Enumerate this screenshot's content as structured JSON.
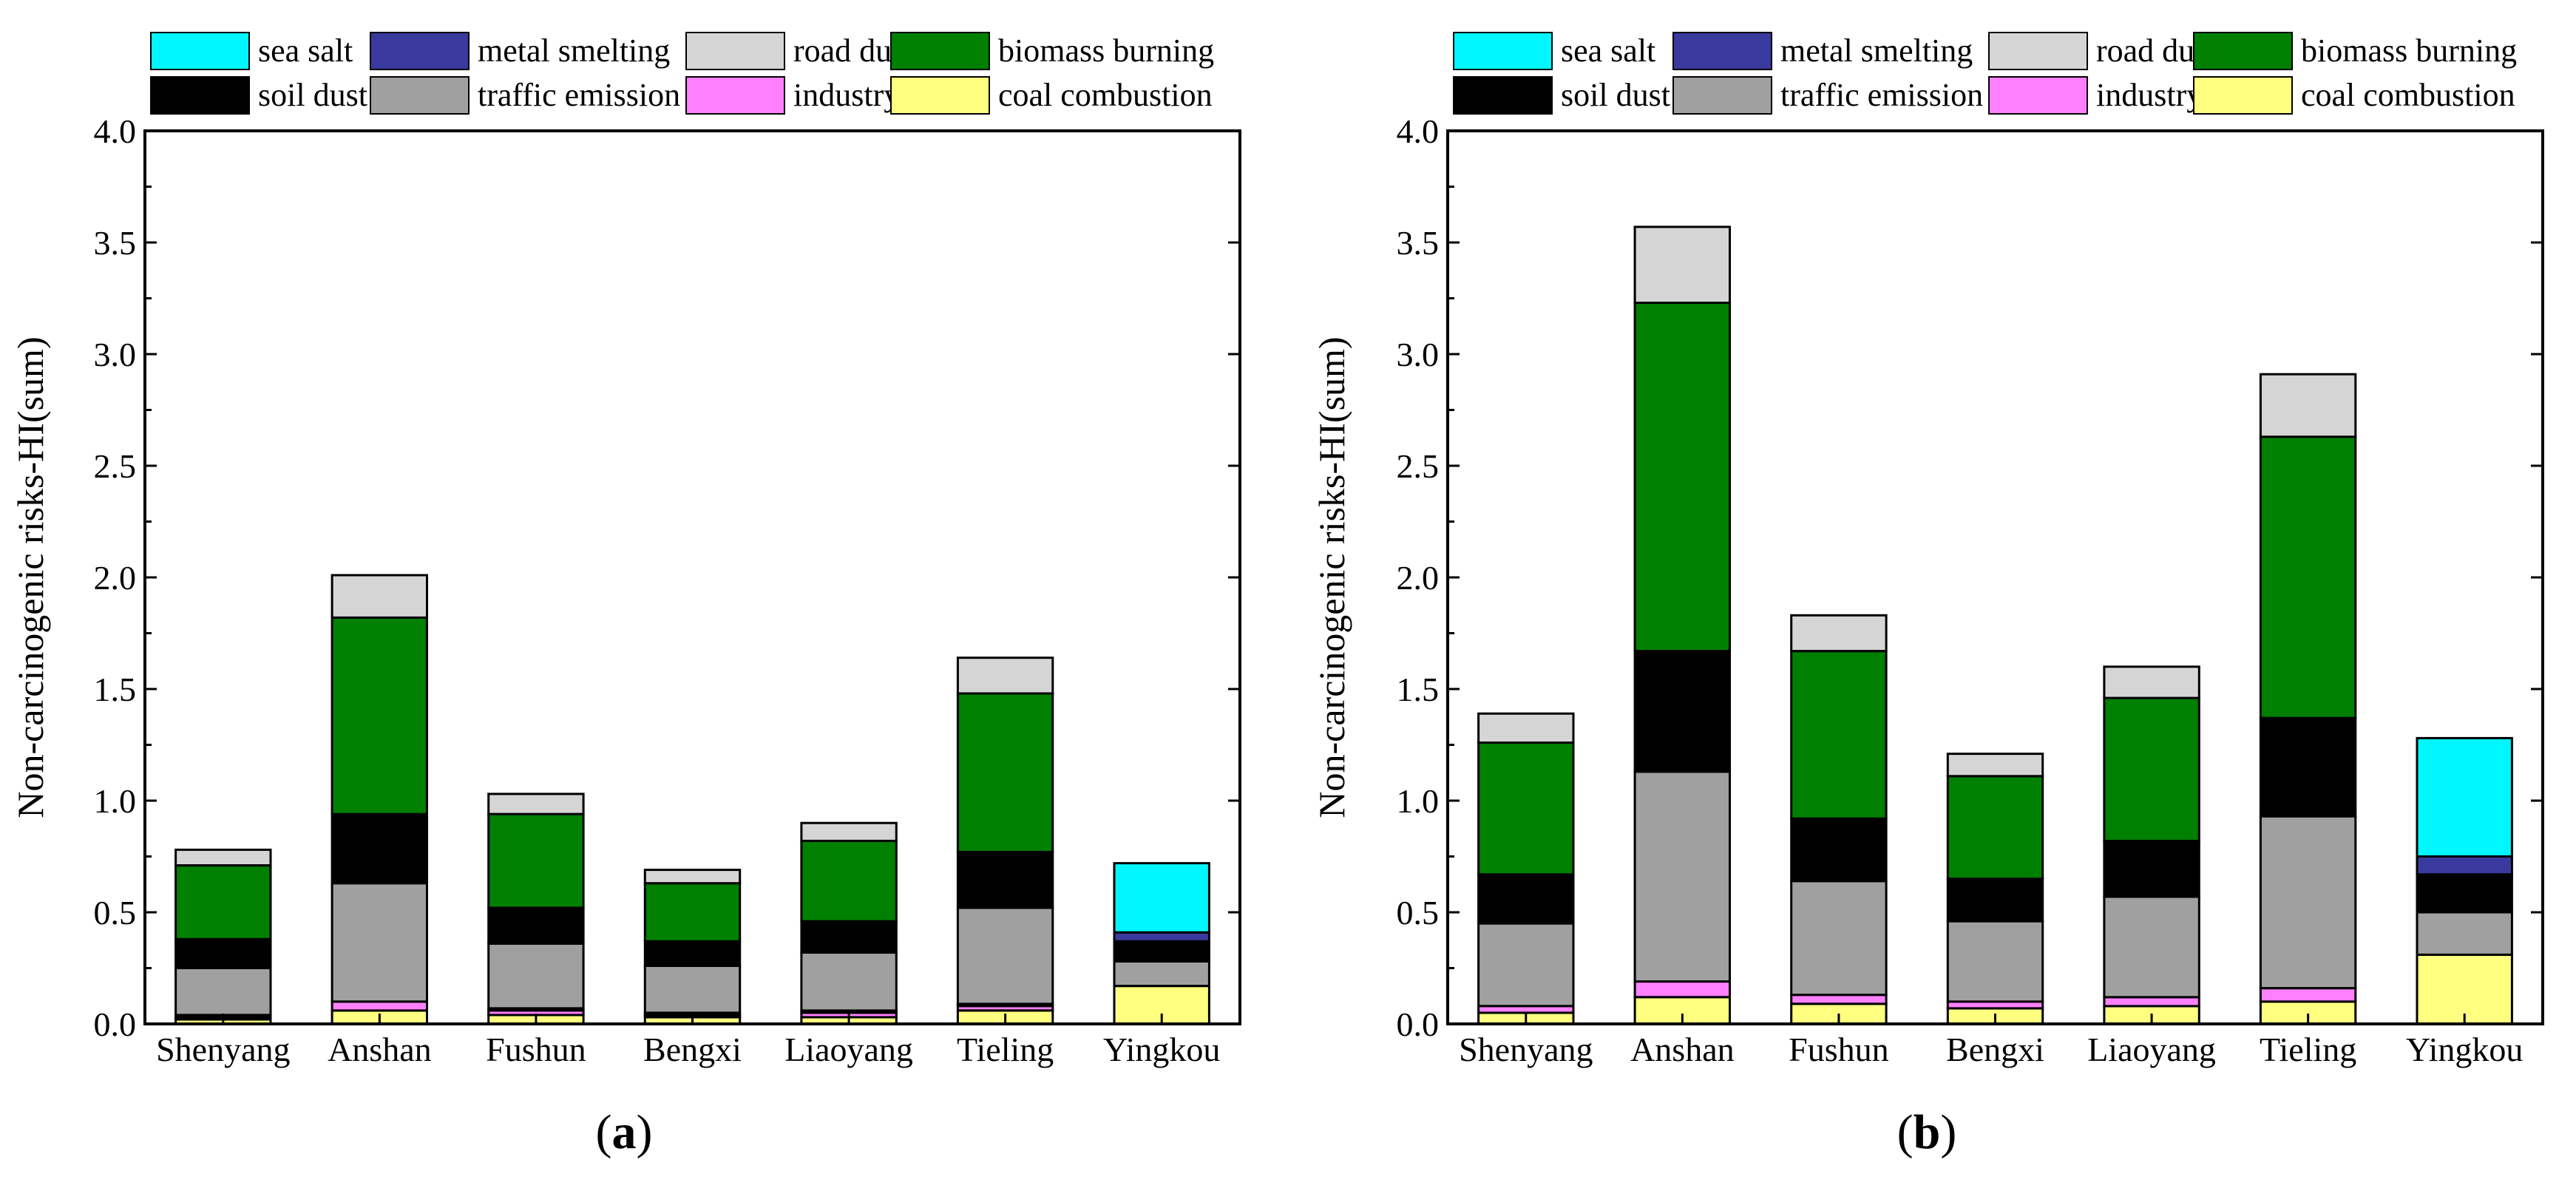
{
  "figure": {
    "panel_labels": [
      "(a)",
      "(b)"
    ],
    "panel_label_parts": [
      {
        "open": "(",
        "letter": "a",
        "close": ")"
      },
      {
        "open": "(",
        "letter": "b",
        "close": ")"
      }
    ]
  },
  "colors": {
    "sea salt": "#00F7FF",
    "metal smelting": "#3A3A9E",
    "road dust": "#D5D5D5",
    "biomass burning": "#008000",
    "soil dust": "#000000",
    "traffic emission": "#A0A0A0",
    "industry": "#FF80FF",
    "coal combustion": "#FFFF80"
  },
  "legend_rows": [
    [
      "sea salt",
      "metal smelting",
      "road dust",
      "biomass burning"
    ],
    [
      "soil dust",
      "traffic emission",
      "industry",
      "coal combustion"
    ]
  ],
  "chart_data": [
    {
      "type": "bar",
      "stacked": true,
      "panel": "(a)",
      "title": "",
      "xlabel": "",
      "ylabel": "Non-carcinogenic risks-HI(sum)",
      "ylim": [
        0,
        4.0
      ],
      "yticks": [
        "0.0",
        "0.5",
        "1.0",
        "1.5",
        "2.0",
        "2.5",
        "3.0",
        "3.5",
        "4.0"
      ],
      "categories": [
        "Shenyang",
        "Anshan",
        "Fushun",
        "Bengxi",
        "Liaoyang",
        "Tieling",
        "Yingkou"
      ],
      "series": [
        {
          "name": "coal combustion",
          "values": [
            0.02,
            0.06,
            0.04,
            0.03,
            0.03,
            0.06,
            0.17
          ]
        },
        {
          "name": "industry",
          "values": [
            0.01,
            0.04,
            0.02,
            0.01,
            0.02,
            0.02,
            0
          ]
        },
        {
          "name": "soil dust",
          "values": [
            0.01,
            0,
            0.01,
            0.01,
            0.01,
            0.01,
            0
          ]
        },
        {
          "name": "traffic emission",
          "values": [
            0.21,
            0.53,
            0.29,
            0.21,
            0.26,
            0.43,
            0.11
          ]
        },
        {
          "name": "soil dust",
          "values": [
            0.13,
            0.31,
            0.16,
            0.11,
            0.14,
            0.25,
            0.09
          ]
        },
        {
          "name": "metal smelting",
          "values": [
            0,
            0,
            0,
            0,
            0,
            0,
            0.04
          ]
        },
        {
          "name": "biomass burning",
          "values": [
            0.33,
            0.88,
            0.42,
            0.26,
            0.36,
            0.71,
            0
          ]
        },
        {
          "name": "sea salt",
          "values": [
            0,
            0,
            0,
            0,
            0,
            0,
            0.31
          ]
        },
        {
          "name": "road dust",
          "values": [
            0.07,
            0.19,
            0.09,
            0.06,
            0.08,
            0.16,
            0
          ]
        }
      ]
    },
    {
      "type": "bar",
      "stacked": true,
      "panel": "(b)",
      "title": "",
      "xlabel": "",
      "ylabel": "Non-carcinogenic risks-HI(sum)",
      "ylim": [
        0,
        4.0
      ],
      "yticks": [
        "0.0",
        "0.5",
        "1.0",
        "1.5",
        "2.0",
        "2.5",
        "3.0",
        "3.5",
        "4.0"
      ],
      "categories": [
        "Shenyang",
        "Anshan",
        "Fushun",
        "Bengxi",
        "Liaoyang",
        "Tieling",
        "Yingkou"
      ],
      "series": [
        {
          "name": "coal combustion",
          "values": [
            0.05,
            0.12,
            0.09,
            0.07,
            0.08,
            0.1,
            0.31
          ]
        },
        {
          "name": "industry",
          "values": [
            0.03,
            0.07,
            0.04,
            0.03,
            0.04,
            0.06,
            0
          ]
        },
        {
          "name": "traffic emission",
          "values": [
            0.37,
            0.94,
            0.51,
            0.36,
            0.45,
            0.77,
            0.19
          ]
        },
        {
          "name": "soil dust",
          "values": [
            0.22,
            0.54,
            0.28,
            0.19,
            0.25,
            0.44,
            0.17
          ]
        },
        {
          "name": "metal smelting",
          "values": [
            0,
            0,
            0,
            0,
            0,
            0,
            0.08
          ]
        },
        {
          "name": "biomass burning",
          "values": [
            0.59,
            1.56,
            0.75,
            0.46,
            0.64,
            1.26,
            0
          ]
        },
        {
          "name": "sea salt",
          "values": [
            0,
            0,
            0,
            0,
            0,
            0,
            0.53
          ]
        },
        {
          "name": "road dust",
          "values": [
            0.13,
            0.34,
            0.16,
            0.1,
            0.14,
            0.28,
            0
          ]
        }
      ]
    }
  ]
}
